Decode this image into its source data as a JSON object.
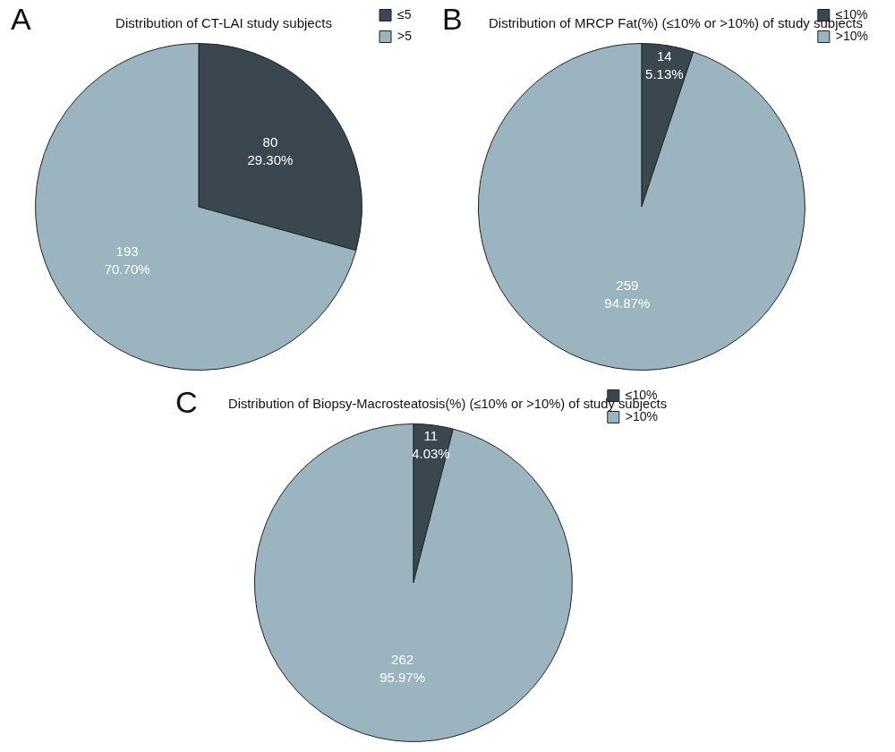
{
  "chart_data": [
    {
      "type": "pie",
      "annotation": "A",
      "title": "Distribution of CT-LAI study subjects",
      "categories": [
        "≤5",
        ">5"
      ],
      "values": [
        80,
        193
      ],
      "percent_labels": [
        "29.30%",
        "70.70%"
      ],
      "colors": [
        "#3a474e",
        "#9ab5bf"
      ],
      "data_labels": true,
      "legend": "top-right"
    },
    {
      "type": "pie",
      "annotation": "B",
      "title": "Distribution of MRCP Fat(%) (≤10% or >10%) of study subjects",
      "categories": [
        "≤10%",
        ">10%"
      ],
      "values": [
        14,
        259
      ],
      "percent_labels": [
        "5.13%",
        "94.87%"
      ],
      "colors": [
        "#3a474e",
        "#9ab5bf"
      ],
      "data_labels": true,
      "legend": "top-right"
    },
    {
      "type": "pie",
      "annotation": "C",
      "title": "Distribution of Biopsy-Macrosteatosis(%) (≤10% or >10%) of study subjects",
      "categories": [
        "≤10%",
        ">10%"
      ],
      "values": [
        11,
        262
      ],
      "percent_labels": [
        "4.03%",
        "95.97%"
      ],
      "colors": [
        "#3a474e",
        "#9ab5bf"
      ],
      "data_labels": true,
      "legend": "top-right"
    }
  ]
}
